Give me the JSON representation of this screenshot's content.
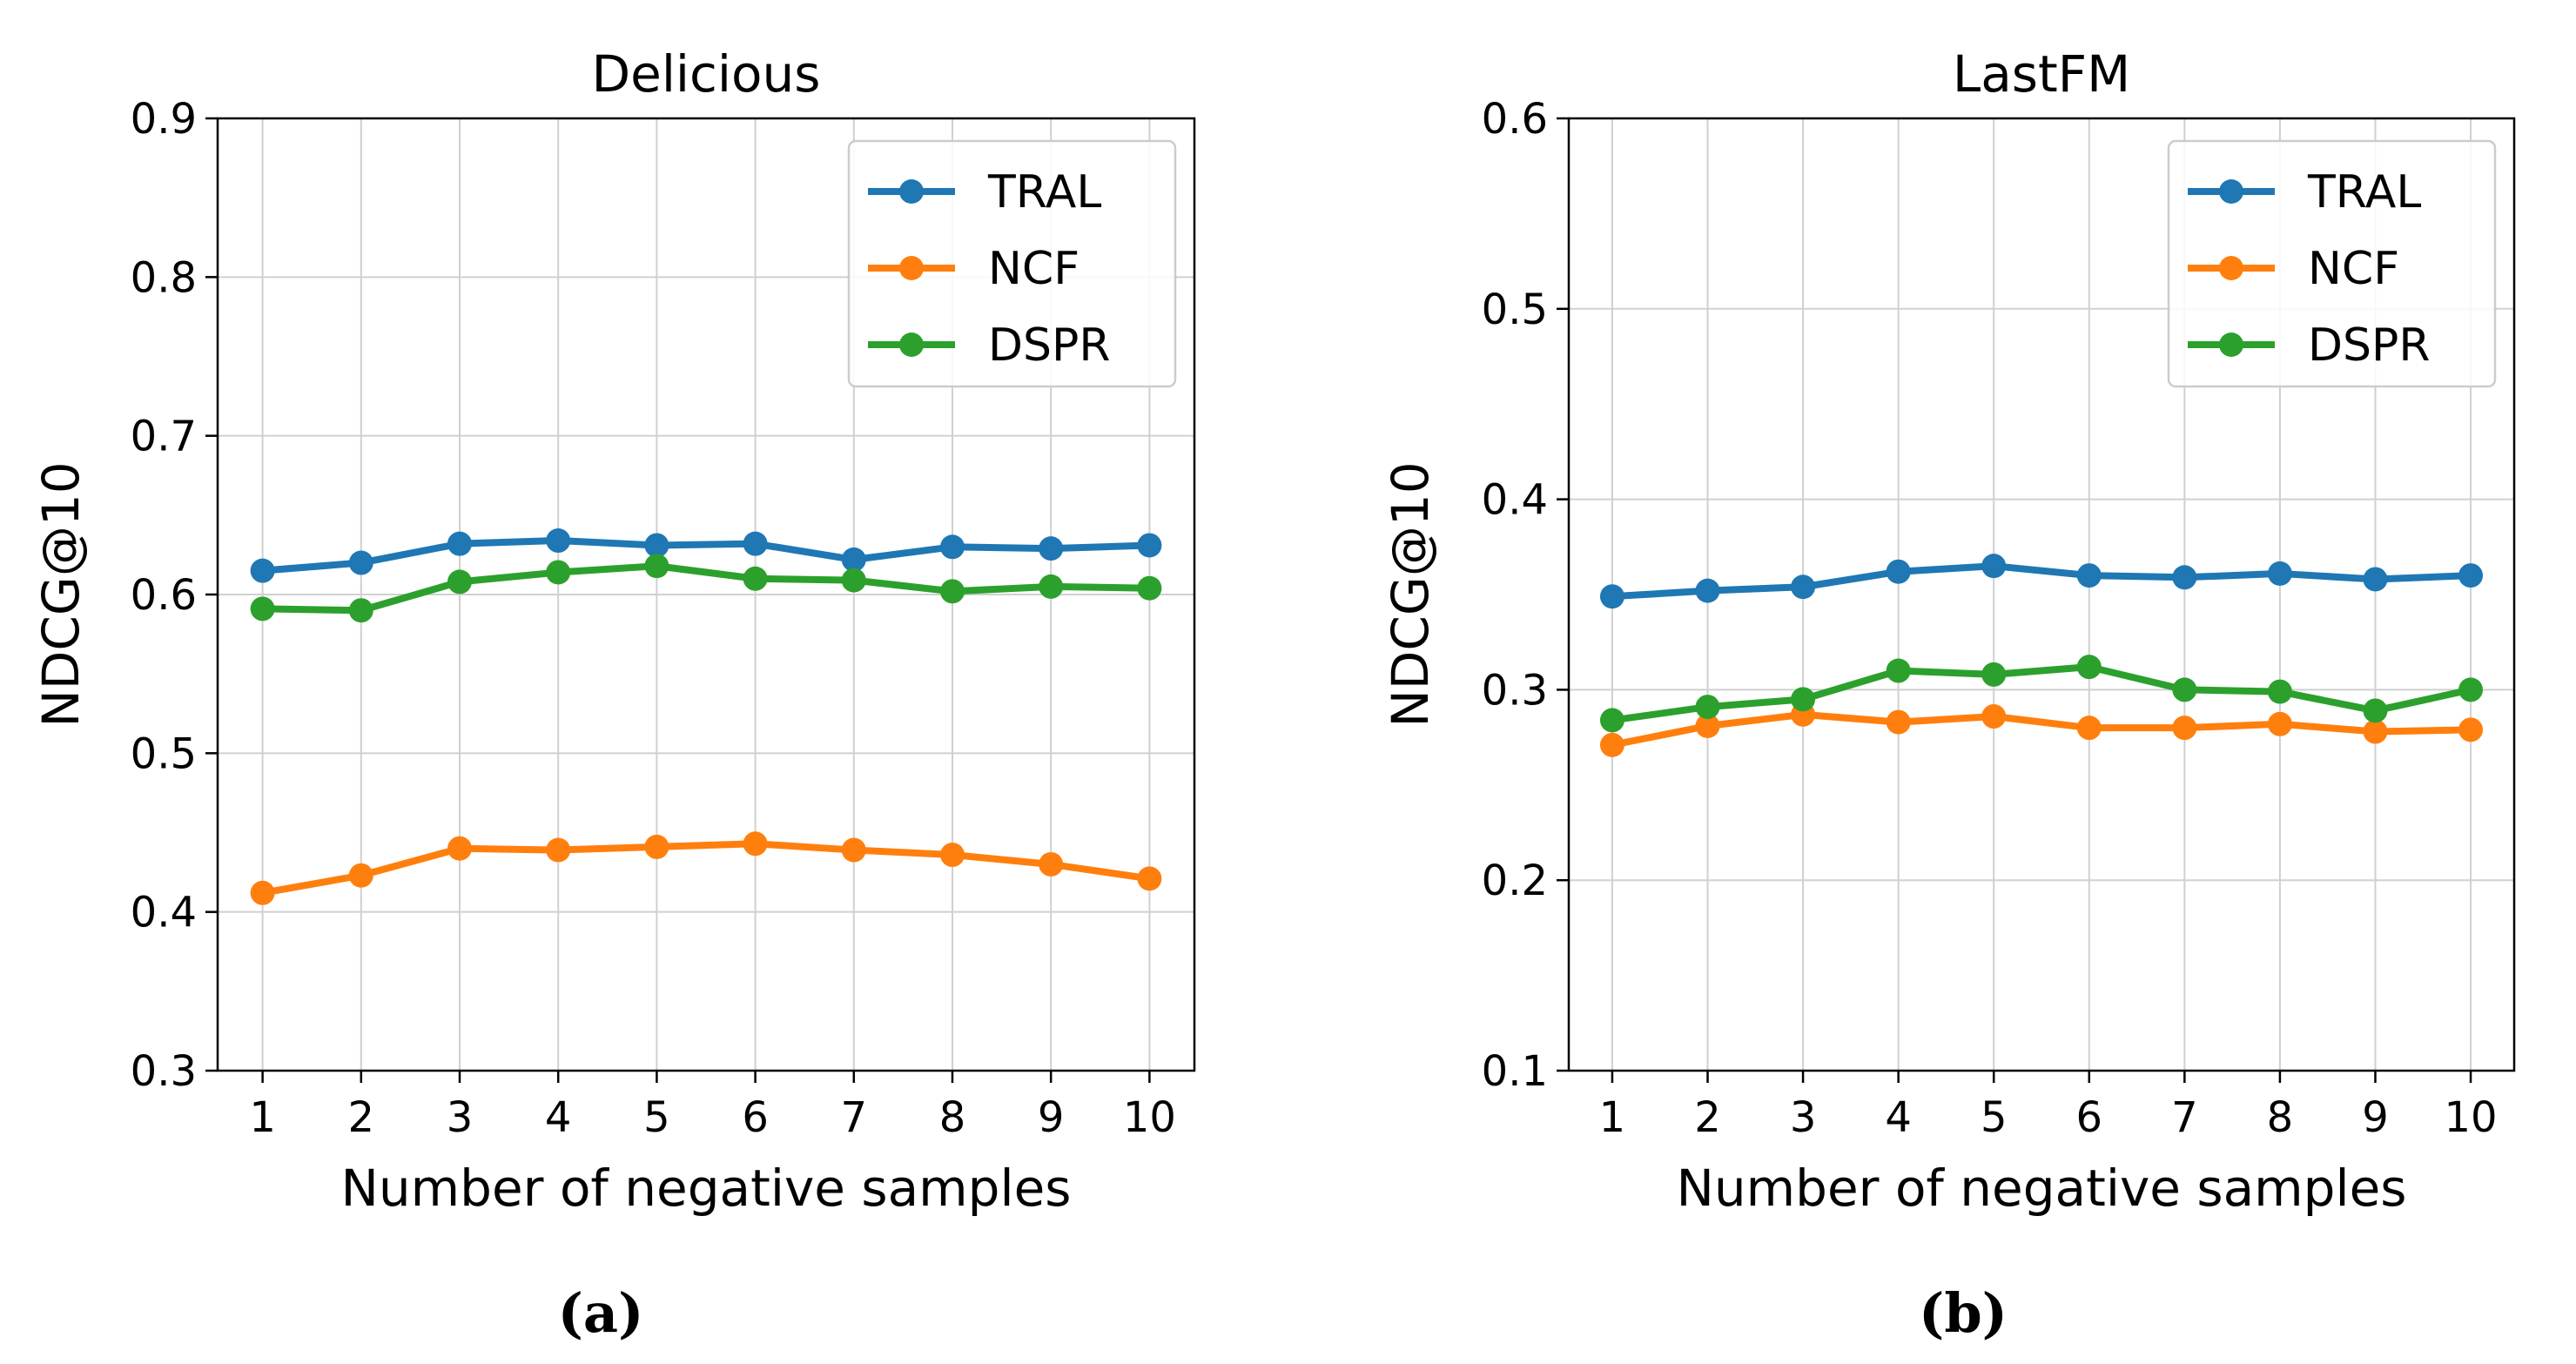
{
  "chart_data": [
    {
      "type": "line",
      "title": "Delicious",
      "xlabel": "Number of negative samples",
      "ylabel": "NDCG@10",
      "caption": "(a)",
      "x": [
        1,
        2,
        3,
        4,
        5,
        6,
        7,
        8,
        9,
        10
      ],
      "xticks": [
        "1",
        "2",
        "3",
        "4",
        "5",
        "6",
        "7",
        "8",
        "9",
        "10"
      ],
      "ylim": [
        0.3,
        0.9
      ],
      "yticks": [
        "0.3",
        "0.4",
        "0.5",
        "0.6",
        "0.7",
        "0.8",
        "0.9"
      ],
      "grid": true,
      "legend_position": "top-right",
      "series": [
        {
          "name": "TRAL",
          "color": "#1f77b4",
          "values": [
            0.615,
            0.62,
            0.632,
            0.634,
            0.631,
            0.632,
            0.622,
            0.63,
            0.629,
            0.631
          ]
        },
        {
          "name": "NCF",
          "color": "#ff7f0e",
          "values": [
            0.412,
            0.423,
            0.44,
            0.439,
            0.441,
            0.443,
            0.439,
            0.436,
            0.43,
            0.421
          ]
        },
        {
          "name": "DSPR",
          "color": "#2ca02c",
          "values": [
            0.591,
            0.59,
            0.608,
            0.614,
            0.618,
            0.61,
            0.609,
            0.602,
            0.605,
            0.604
          ]
        }
      ]
    },
    {
      "type": "line",
      "title": "LastFM",
      "xlabel": "Number of negative samples",
      "ylabel": "NDCG@10",
      "caption": "(b)",
      "x": [
        1,
        2,
        3,
        4,
        5,
        6,
        7,
        8,
        9,
        10
      ],
      "xticks": [
        "1",
        "2",
        "3",
        "4",
        "5",
        "6",
        "7",
        "8",
        "9",
        "10"
      ],
      "ylim": [
        0.1,
        0.6
      ],
      "yticks": [
        "0.1",
        "0.2",
        "0.3",
        "0.4",
        "0.5",
        "0.6"
      ],
      "grid": true,
      "legend_position": "top-right",
      "series": [
        {
          "name": "TRAL",
          "color": "#1f77b4",
          "values": [
            0.349,
            0.352,
            0.354,
            0.362,
            0.365,
            0.36,
            0.359,
            0.361,
            0.358,
            0.36
          ]
        },
        {
          "name": "NCF",
          "color": "#ff7f0e",
          "values": [
            0.271,
            0.281,
            0.287,
            0.283,
            0.286,
            0.28,
            0.28,
            0.282,
            0.278,
            0.279
          ]
        },
        {
          "name": "DSPR",
          "color": "#2ca02c",
          "values": [
            0.284,
            0.291,
            0.295,
            0.31,
            0.308,
            0.312,
            0.3,
            0.299,
            0.289,
            0.3
          ]
        }
      ]
    }
  ]
}
